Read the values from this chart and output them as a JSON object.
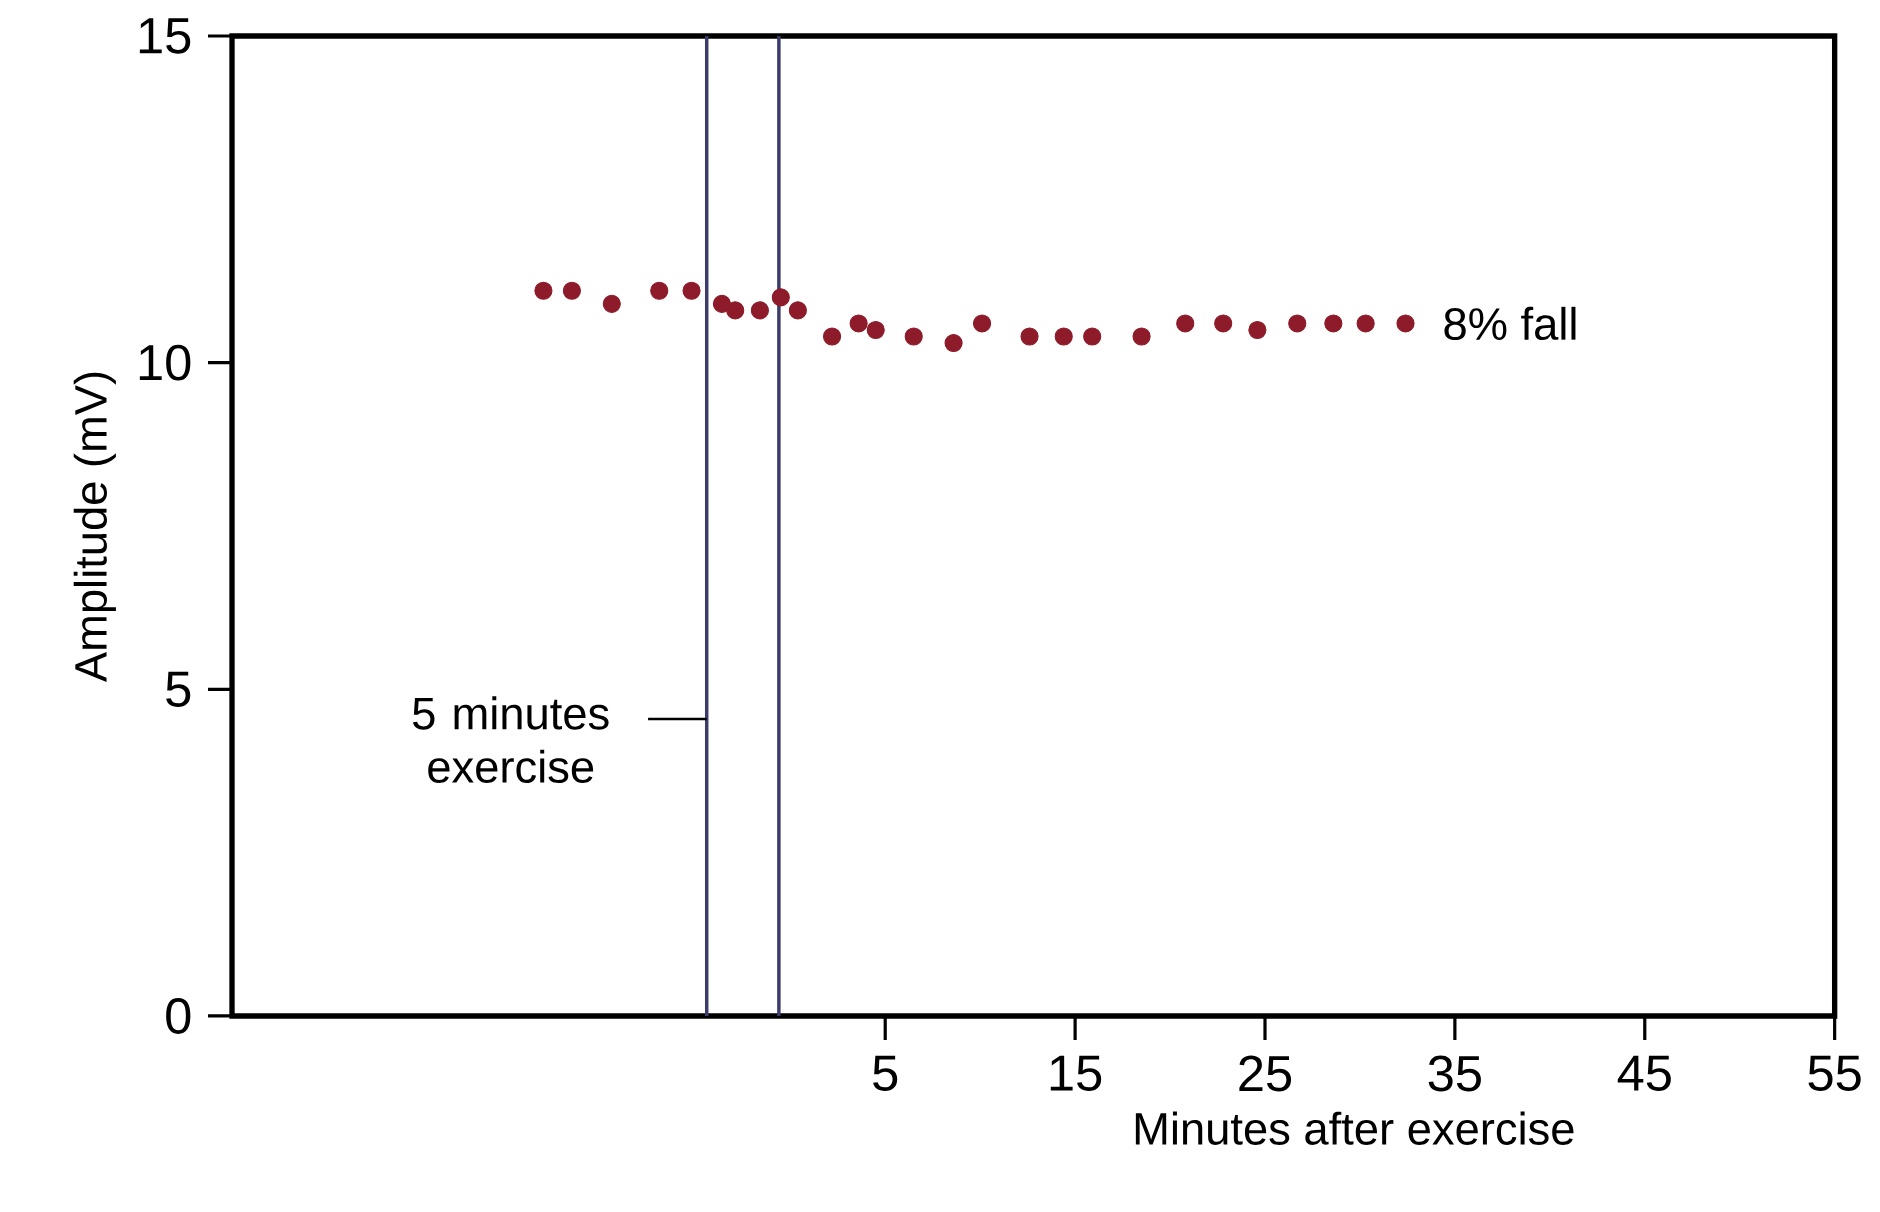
{
  "chart_data": {
    "type": "scatter",
    "xlabel": "Minutes after exercise",
    "ylabel": "Amplitude (mV)",
    "x": [
      -13.0,
      -11.5,
      -9.4,
      -6.9,
      -5.2,
      -3.6,
      -2.9,
      -1.6,
      -0.5,
      0.4,
      2.2,
      3.6,
      4.5,
      6.5,
      8.6,
      10.1,
      12.6,
      14.4,
      15.9,
      18.5,
      20.8,
      22.8,
      24.6,
      26.7,
      28.6,
      30.3,
      32.4
    ],
    "values": [
      11.1,
      11.1,
      10.9,
      11.1,
      11.1,
      10.9,
      10.8,
      10.8,
      11.0,
      10.8,
      10.4,
      10.6,
      10.5,
      10.4,
      10.3,
      10.6,
      10.4,
      10.4,
      10.4,
      10.4,
      10.6,
      10.6,
      10.5,
      10.6,
      10.6,
      10.6,
      10.6
    ],
    "color": "#8e1b2a",
    "xlim": [
      -29.4,
      55
    ],
    "ylim": [
      0,
      15
    ],
    "xticks": [
      5,
      15,
      25,
      35,
      45,
      55
    ],
    "yticks": [
      0,
      5,
      10,
      15
    ],
    "ref_lines": [
      {
        "axis": "x",
        "value": -4.4,
        "label": "5 minutes exercise",
        "color": "#3c3c6a"
      },
      {
        "axis": "x",
        "value": -0.6,
        "color": "#3c3c6a"
      }
    ],
    "annotations": [
      {
        "text": "8% fall",
        "x": 32.4,
        "y": 10.6
      }
    ],
    "grid": false
  }
}
